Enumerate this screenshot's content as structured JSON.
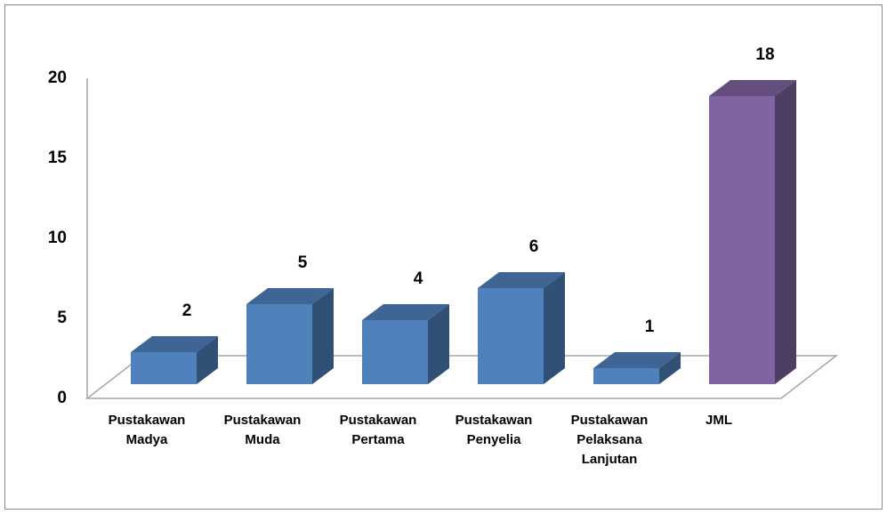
{
  "chart_data": {
    "type": "bar3d",
    "categories": [
      "Pustakawan Madya",
      "Pustakawan Muda",
      "Pustakawan Pertama",
      "Pustakawan Penyelia",
      "Pustakawan Pelaksana Lanjutan",
      "JML"
    ],
    "values": [
      2,
      5,
      4,
      6,
      1,
      18
    ],
    "colors": [
      "#4f81bd",
      "#4f81bd",
      "#4f81bd",
      "#4f81bd",
      "#4f81bd",
      "#8064a2"
    ],
    "ylim": [
      0,
      20
    ],
    "yticks": [
      0,
      5,
      10,
      15,
      20
    ]
  }
}
